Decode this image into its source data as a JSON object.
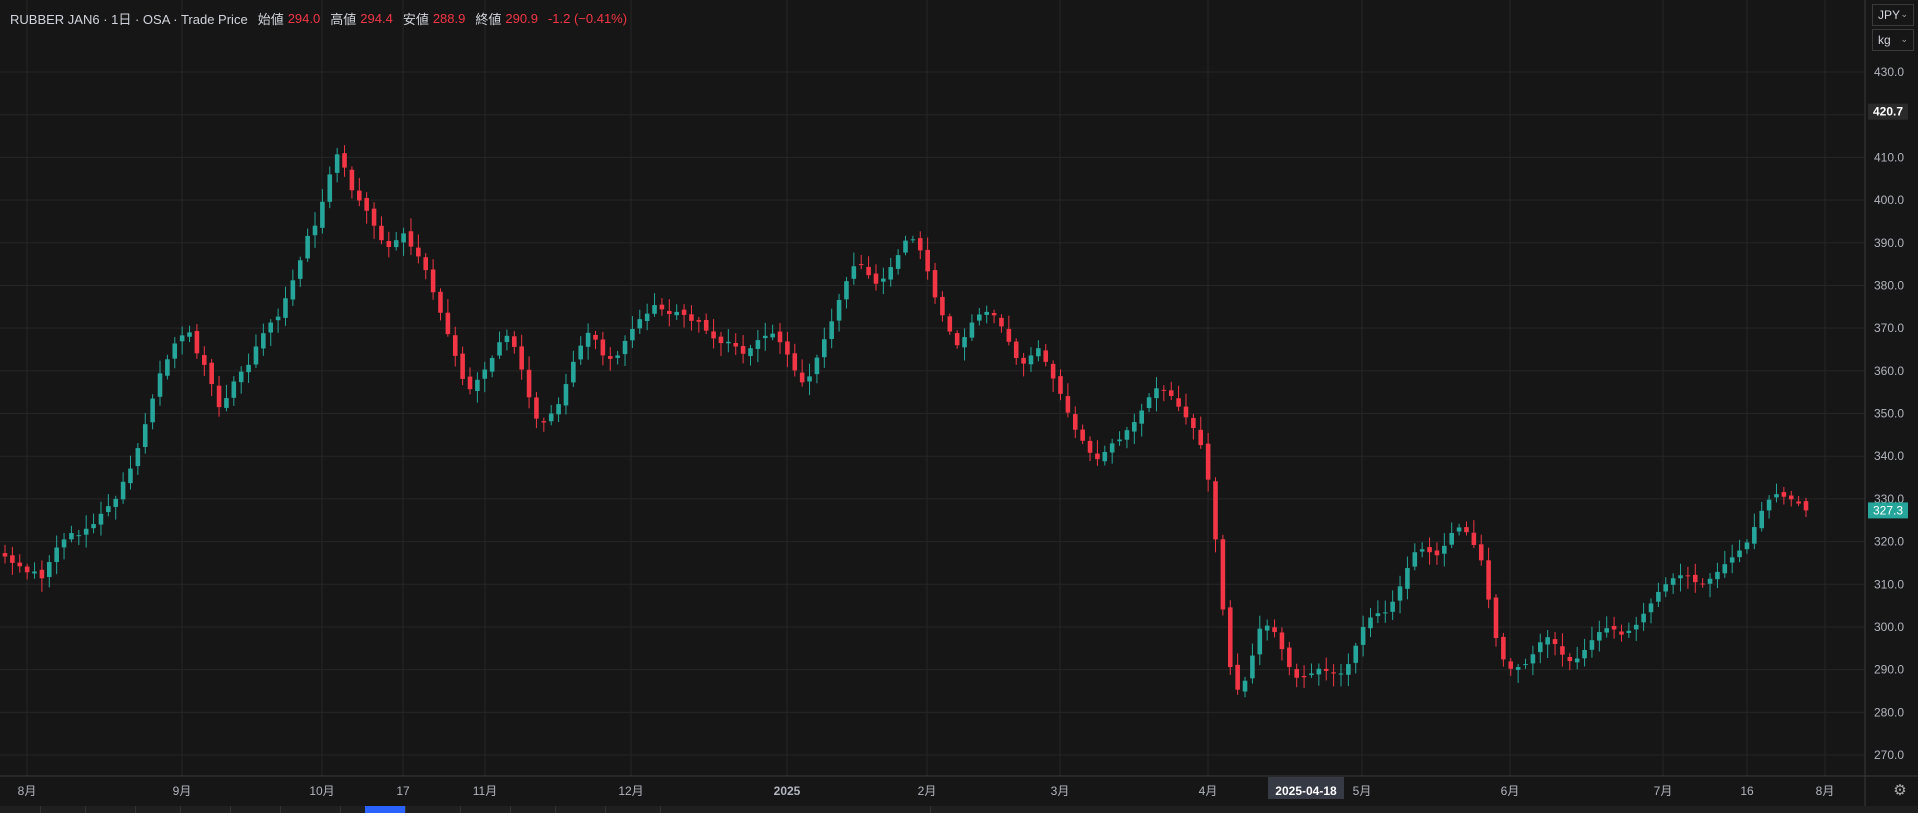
{
  "header": {
    "symbol": "RUBBER JAN6 · 1日 · OSA · Trade Price",
    "open_label": "始値",
    "open": "294.0",
    "high_label": "高値",
    "high": "294.4",
    "low_label": "安値",
    "low": "288.9",
    "close_label": "終値",
    "close": "290.9",
    "change": "-1.2 (−0.41%)"
  },
  "controls": {
    "currency": "JPY",
    "unit": "kg",
    "settings_icon": "gear-icon"
  },
  "colors": {
    "up": "#26a69a",
    "down": "#f23645",
    "background": "#161616",
    "grid": "#262626",
    "text": "#d1d4dc",
    "last_price_bg": "#26a69a"
  },
  "chart_data": {
    "type": "candlestick",
    "ylim": [
      265,
      435
    ],
    "y_ticks": [
      "270.0",
      "280.0",
      "290.0",
      "300.0",
      "310.0",
      "320.0",
      "330.0",
      "340.0",
      "350.0",
      "360.0",
      "370.0",
      "380.0",
      "390.0",
      "400.0",
      "410.0",
      "420.0",
      "430.0"
    ],
    "x_ticks": [
      "8月",
      "9月",
      "10月",
      "17",
      "11月",
      "12月",
      "2025",
      "2月",
      "3月",
      "4月",
      "5月",
      "6月",
      "7月",
      "16",
      "8月"
    ],
    "crosshair_date": "2025-04-18",
    "price_labels": {
      "high_marker": "420.7",
      "last": "327.3"
    },
    "grid": true,
    "series": [
      {
        "name": "RUBBER JAN6",
        "close": [
          316.5,
          315.0,
          314.2,
          312.8,
          313.0,
          311.4,
          315.2,
          318.6,
          320.5,
          322.0,
          321.5,
          323.0,
          324.1,
          326.5,
          328.3,
          330.0,
          334.0,
          337.1,
          341.9,
          347.5,
          353.5,
          359.4,
          362.7,
          366.4,
          368.3,
          369.0,
          364.1,
          361.4,
          356.9,
          351.5,
          353.6,
          357.5,
          359.8,
          361.4,
          365.7,
          368.8,
          371.3,
          372.7,
          377.0,
          381.2,
          385.9,
          391.6,
          394.0,
          399.6,
          406.0,
          410.7,
          407.6,
          402.3,
          399.9,
          397.5,
          394.0,
          390.6,
          389.0,
          390.6,
          392.2,
          389.1,
          386.8,
          383.6,
          378.4,
          373.6,
          368.6,
          363.5,
          358.1,
          355.7,
          357.9,
          360.3,
          363.0,
          366.7,
          368.2,
          365.6,
          360.3,
          353.8,
          348.8,
          347.9,
          350.0,
          352.2,
          356.9,
          362.1,
          365.9,
          368.9,
          367.3,
          363.6,
          362.8,
          363.6,
          367.0,
          369.8,
          372.1,
          373.4,
          375.4,
          374.4,
          373.3,
          373.8,
          373.1,
          371.7,
          371.5,
          369.4,
          367.6,
          366.5,
          366.8,
          365.7,
          364.0,
          365.3,
          367.2,
          368.2,
          368.7,
          366.7,
          363.8,
          360.1,
          357.3,
          358.7,
          363.1,
          367.4,
          371.6,
          376.6,
          381.0,
          384.5,
          384.9,
          382.4,
          380.4,
          381.6,
          384.3,
          387.1,
          390.5,
          390.8,
          388.2,
          383.3,
          377.2,
          373.0,
          369.2,
          366.0,
          367.9,
          371.3,
          373.2,
          373.8,
          373.0,
          370.4,
          366.8,
          363.0,
          361.7,
          363.6,
          365.3,
          362.1,
          358.2,
          354.6,
          350.2,
          346.2,
          343.6,
          340.8,
          339.3,
          341.0,
          343.0,
          343.9,
          346.1,
          348.0,
          350.7,
          353.8,
          355.9,
          355.4,
          354.1,
          351.6,
          349.1,
          346.6,
          342.6,
          334.5,
          320.5,
          304.1,
          290.6,
          285.3,
          287.4,
          293.3,
          299.6,
          300.3,
          298.8,
          294.8,
          290.6,
          288.1,
          288.2,
          289.1,
          290.2,
          289.7,
          289.1,
          289.1,
          291.3,
          295.6,
          300.0,
          302.2,
          303.2,
          303.4,
          305.9,
          309.5,
          313.8,
          317.5,
          318.2,
          317.5,
          316.8,
          319.0,
          322.0,
          323.3,
          322.2,
          319.2,
          315.6,
          306.4,
          297.4,
          292.4,
          290.2,
          290.6,
          291.3,
          293.6,
          296.4,
          297.6,
          296.0,
          293.5,
          292.0,
          292.6,
          294.6,
          296.9,
          298.8,
          299.7,
          299.4,
          298.2,
          299.1,
          300.5,
          303.1,
          305.5,
          308.2,
          310.0,
          311.4,
          312.1,
          311.9,
          310.5,
          310.0,
          311.3,
          312.9,
          314.7,
          316.3,
          317.9,
          319.8,
          323.4,
          327.2,
          329.8,
          331.1,
          330.5,
          329.9,
          328.9,
          327.3
        ]
      }
    ]
  }
}
